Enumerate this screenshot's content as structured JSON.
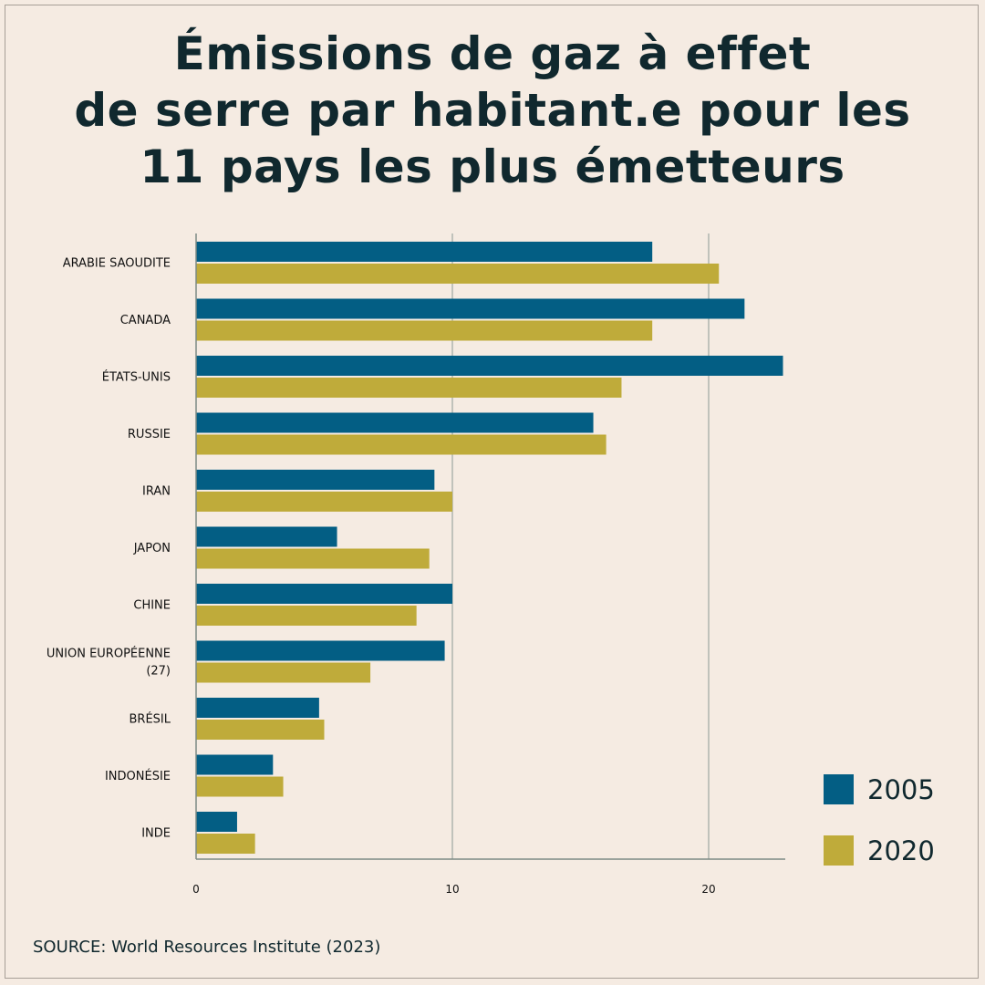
{
  "title_lines": [
    "Émissions de gaz à effet",
    "de serre par habitant.e pour les",
    "11 pays les plus émetteurs"
  ],
  "source": "SOURCE: World Resources Institute (2023)",
  "chart_data": {
    "type": "bar",
    "orientation": "horizontal",
    "categories": [
      "ARABIE SAOUDITE",
      "CANADA",
      "ÉTATS-UNIS",
      "RUSSIE",
      "IRAN",
      "JAPON",
      "CHINE",
      "UNION EUROPÉENNE (27)",
      "BRÉSIL",
      "INDONÉSIE",
      "INDE"
    ],
    "category_label_lines": [
      [
        "ARABIE SAOUDITE"
      ],
      [
        "CANADA"
      ],
      [
        "ÉTATS-UNIS"
      ],
      [
        "RUSSIE"
      ],
      [
        "IRAN"
      ],
      [
        "JAPON"
      ],
      [
        "CHINE"
      ],
      [
        "UNION EUROPÉENNE",
        "(27)"
      ],
      [
        "BRÉSIL"
      ],
      [
        "INDONÉSIE"
      ],
      [
        "INDE"
      ]
    ],
    "series": [
      {
        "name": "2005",
        "color": "#035e84",
        "values": [
          17.8,
          21.4,
          22.9,
          15.5,
          9.3,
          5.5,
          10.0,
          9.7,
          4.8,
          3.0,
          1.6
        ]
      },
      {
        "name": "2020",
        "color": "#bfab3a",
        "values": [
          20.4,
          17.8,
          16.6,
          16.0,
          10.0,
          9.1,
          8.6,
          6.8,
          5.0,
          3.4,
          2.3
        ]
      }
    ],
    "x_ticks": [
      0,
      10,
      20
    ],
    "xlim": [
      0,
      22.9
    ],
    "grid": "vertical lines at 10 and 20",
    "legend_position": "bottom-right",
    "xlabel": "",
    "ylabel": ""
  }
}
